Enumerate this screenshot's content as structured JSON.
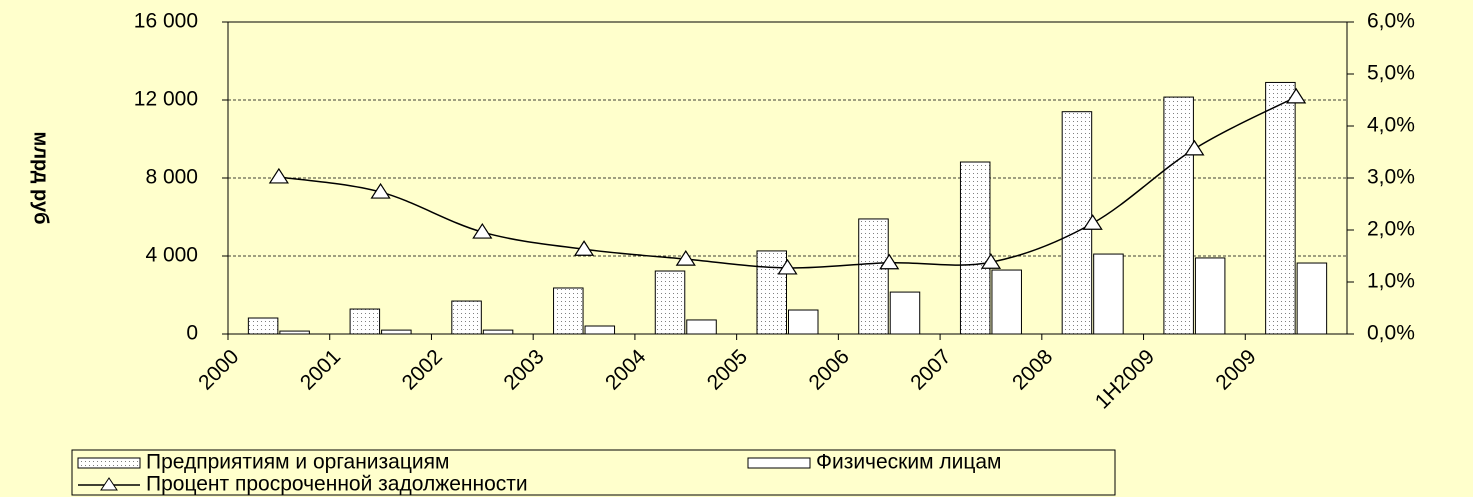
{
  "chart_data": {
    "type": "bar",
    "y_label": "млрд руб",
    "categories": [
      "2000",
      "2001",
      "2002",
      "2003",
      "2004",
      "2005",
      "2006",
      "2007",
      "2008",
      "1H2009",
      "2009"
    ],
    "series": [
      {
        "name": "Предприятиям и организациям",
        "type": "bar",
        "color": "#808080",
        "values": [
          820,
          1280,
          1690,
          2360,
          3230,
          4260,
          5900,
          8820,
          11400,
          12150,
          12900
        ]
      },
      {
        "name": "Физическим лицам",
        "type": "bar",
        "color": "#ffffff",
        "values": [
          150,
          200,
          200,
          410,
          720,
          1230,
          2150,
          3280,
          4100,
          3900,
          3640
        ]
      },
      {
        "name": "Процент просроченной задолженности",
        "type": "line",
        "axis": "y2",
        "color": "#000000",
        "values": [
          3.02,
          2.73,
          1.96,
          1.63,
          1.44,
          1.27,
          1.37,
          1.38,
          2.13,
          3.56,
          4.56
        ]
      }
    ],
    "ylim": [
      0,
      16000
    ],
    "yticks": [
      0,
      {
        "value": 4000,
        "label": "4 000"
      },
      {
        "value": 8000,
        "label": "8 000"
      },
      {
        "value": 12000,
        "label": "12 000"
      },
      {
        "value": 16000,
        "label": "16 000"
      }
    ],
    "y2lim": [
      0,
      6
    ],
    "y2ticks": [
      {
        "value": 0,
        "label": "0,0%"
      },
      {
        "value": 1,
        "label": "1,0%"
      },
      {
        "value": 2,
        "label": "2,0%"
      },
      {
        "value": 3,
        "label": "3,0%"
      },
      {
        "value": 4,
        "label": "4,0%"
      },
      {
        "value": 5,
        "label": "5,0%"
      },
      {
        "value": 6,
        "label": "6,0%"
      }
    ],
    "grid": true
  }
}
